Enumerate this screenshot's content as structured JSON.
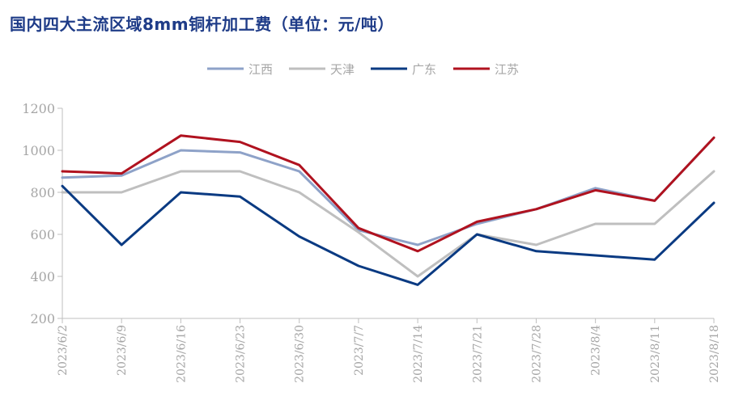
{
  "title": "国内四大主流区域8mm铜杆加工费（单位：元/吨）",
  "chart_data": {
    "type": "line",
    "title": "国内四大主流区域8mm铜杆加工费（单位：元/吨）",
    "xlabel": "",
    "ylabel": "",
    "categories": [
      "2023/6/2",
      "2023/6/9",
      "2023/6/16",
      "2023/6/23",
      "2023/6/30",
      "2023/7/7",
      "2023/7/14",
      "2023/7/21",
      "2023/7/28",
      "2023/8/4",
      "2023/8/11",
      "2023/8/18"
    ],
    "ylim": [
      200,
      1200
    ],
    "yticks": [
      200,
      400,
      600,
      800,
      1000,
      1200
    ],
    "grid": false,
    "legend_position": "top-center",
    "series": [
      {
        "name": "江西",
        "color": "#8ea2c8",
        "values": [
          870,
          880,
          1000,
          990,
          900,
          620,
          550,
          650,
          720,
          820,
          760,
          1060
        ]
      },
      {
        "name": "天津",
        "color": "#bfbfbf",
        "values": [
          800,
          800,
          900,
          900,
          800,
          610,
          400,
          600,
          550,
          650,
          650,
          900
        ]
      },
      {
        "name": "广东",
        "color": "#0a3a82",
        "values": [
          830,
          550,
          800,
          780,
          590,
          450,
          360,
          600,
          520,
          500,
          480,
          750
        ]
      },
      {
        "name": "江苏",
        "color": "#b0121f",
        "values": [
          900,
          890,
          1070,
          1040,
          930,
          630,
          520,
          660,
          720,
          810,
          760,
          1060
        ]
      }
    ]
  }
}
